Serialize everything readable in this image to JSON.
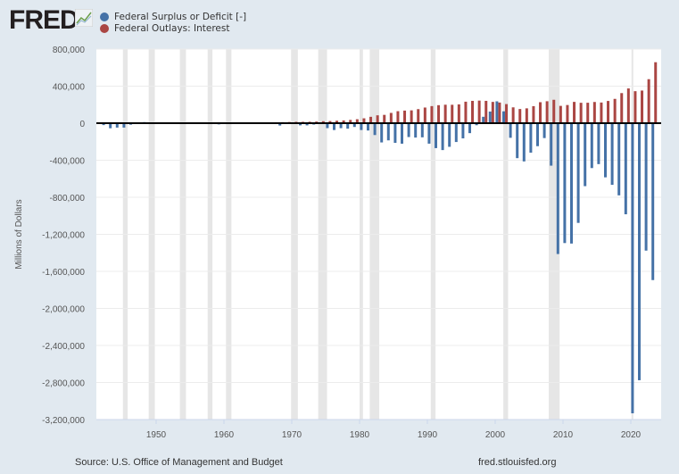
{
  "brand": {
    "logo_text": "FRED"
  },
  "chart_data": {
    "type": "bar",
    "title": "",
    "xlabel": "",
    "ylabel": "Millions of Dollars",
    "ylim": [
      -3200000,
      800000
    ],
    "xlim": [
      1941,
      2024
    ],
    "yticks": [
      800000,
      400000,
      0,
      -400000,
      -800000,
      -1200000,
      -1600000,
      -2000000,
      -2400000,
      -2800000,
      -3200000
    ],
    "ytick_labels": [
      "800,000",
      "400,000",
      "0",
      "-400,000",
      "-800,000",
      "-1,200,000",
      "-1,600,000",
      "-2,000,000",
      "-2,400,000",
      "-2,800,000",
      "-3,200,000"
    ],
    "xticks": [
      1950,
      1960,
      1970,
      1980,
      1990,
      2000,
      2010,
      2020
    ],
    "xtick_labels": [
      "1950",
      "1960",
      "1970",
      "1980",
      "1990",
      "2000",
      "2010",
      "2020"
    ],
    "grid": "horizontal",
    "legend_placement": "top-left",
    "years": [
      1942,
      1943,
      1944,
      1945,
      1946,
      1947,
      1948,
      1949,
      1950,
      1951,
      1952,
      1953,
      1954,
      1955,
      1956,
      1957,
      1958,
      1959,
      1960,
      1961,
      1962,
      1963,
      1964,
      1965,
      1966,
      1967,
      1968,
      1969,
      1970,
      1971,
      1972,
      1973,
      1974,
      1975,
      1976,
      1977,
      1978,
      1979,
      1980,
      1981,
      1982,
      1983,
      1984,
      1985,
      1986,
      1987,
      1988,
      1989,
      1990,
      1991,
      1992,
      1993,
      1994,
      1995,
      1996,
      1997,
      1998,
      1999,
      2000,
      2001,
      2002,
      2003,
      2004,
      2005,
      2006,
      2007,
      2008,
      2009,
      2010,
      2011,
      2012,
      2013,
      2014,
      2015,
      2016,
      2017,
      2018,
      2019,
      2020,
      2021,
      2022,
      2023
    ],
    "series": [
      {
        "name": "Federal Surplus or Deficit [-]",
        "color": "#4572a7",
        "values": [
          -20503,
          -54554,
          -47557,
          -47553,
          -15936,
          4018,
          11796,
          580,
          -3119,
          6102,
          -1519,
          -6493,
          -1154,
          -2993,
          3947,
          3412,
          -2769,
          -12849,
          301,
          -3335,
          -7146,
          -4756,
          -5915,
          -1411,
          -3698,
          -8643,
          -25161,
          3242,
          -2842,
          -23033,
          -23373,
          -14908,
          -6135,
          -53242,
          -73732,
          -53659,
          -59185,
          -40726,
          -73830,
          -78968,
          -127977,
          -207802,
          -185367,
          -212308,
          -221227,
          -149730,
          -155178,
          -152639,
          -221036,
          -269238,
          -290321,
          -255051,
          -203186,
          -163952,
          -107431,
          -21884,
          69270,
          125610,
          236241,
          128236,
          -157758,
          -377585,
          -412727,
          -318346,
          -248181,
          -160701,
          -458553,
          -1412688,
          -1294373,
          -1299599,
          -1076573,
          -679775,
          -484602,
          -441960,
          -584651,
          -665446,
          -779137,
          -983592,
          -3132460,
          -2775310,
          -1375916,
          -1694000
        ]
      },
      {
        "name": "Federal Outlays: Interest",
        "color": "#aa4643",
        "values": [
          1052,
          1529,
          2219,
          3112,
          4111,
          4204,
          4341,
          4523,
          4812,
          4665,
          4701,
          5156,
          4811,
          4850,
          5079,
          5354,
          5604,
          5762,
          6947,
          6716,
          6889,
          7740,
          8199,
          8591,
          9386,
          10268,
          11090,
          12699,
          14380,
          14841,
          15478,
          17349,
          21449,
          23244,
          26727,
          29901,
          35458,
          42633,
          52533,
          68766,
          85032,
          89808,
          111102,
          129478,
          136017,
          138611,
          151803,
          168981,
          184347,
          194448,
          199344,
          198713,
          202932,
          232134,
          241053,
          243984,
          241118,
          229755,
          222949,
          206167,
          170949,
          153073,
          160245,
          183986,
          226603,
          237109,
          252757,
          186902,
          196194,
          229962,
          220408,
          220885,
          228956,
          223181,
          240033,
          262551,
          324975,
          375158,
          345470,
          352338,
          475109,
          658266
        ]
      }
    ],
    "recessions": [
      [
        1945.1,
        1945.8
      ],
      [
        1948.9,
        1949.8
      ],
      [
        1953.5,
        1954.4
      ],
      [
        1957.6,
        1958.3
      ],
      [
        1960.3,
        1961.1
      ],
      [
        1969.9,
        1970.9
      ],
      [
        1973.9,
        1975.2
      ],
      [
        1980.0,
        1980.5
      ],
      [
        1981.5,
        1982.9
      ],
      [
        1990.5,
        1991.2
      ],
      [
        2001.2,
        2001.9
      ],
      [
        2007.9,
        2009.5
      ],
      [
        2020.1,
        2020.3
      ]
    ]
  },
  "footer": {
    "source": "Source: U.S. Office of Management and Budget",
    "site": "fred.stlouisfed.org"
  }
}
